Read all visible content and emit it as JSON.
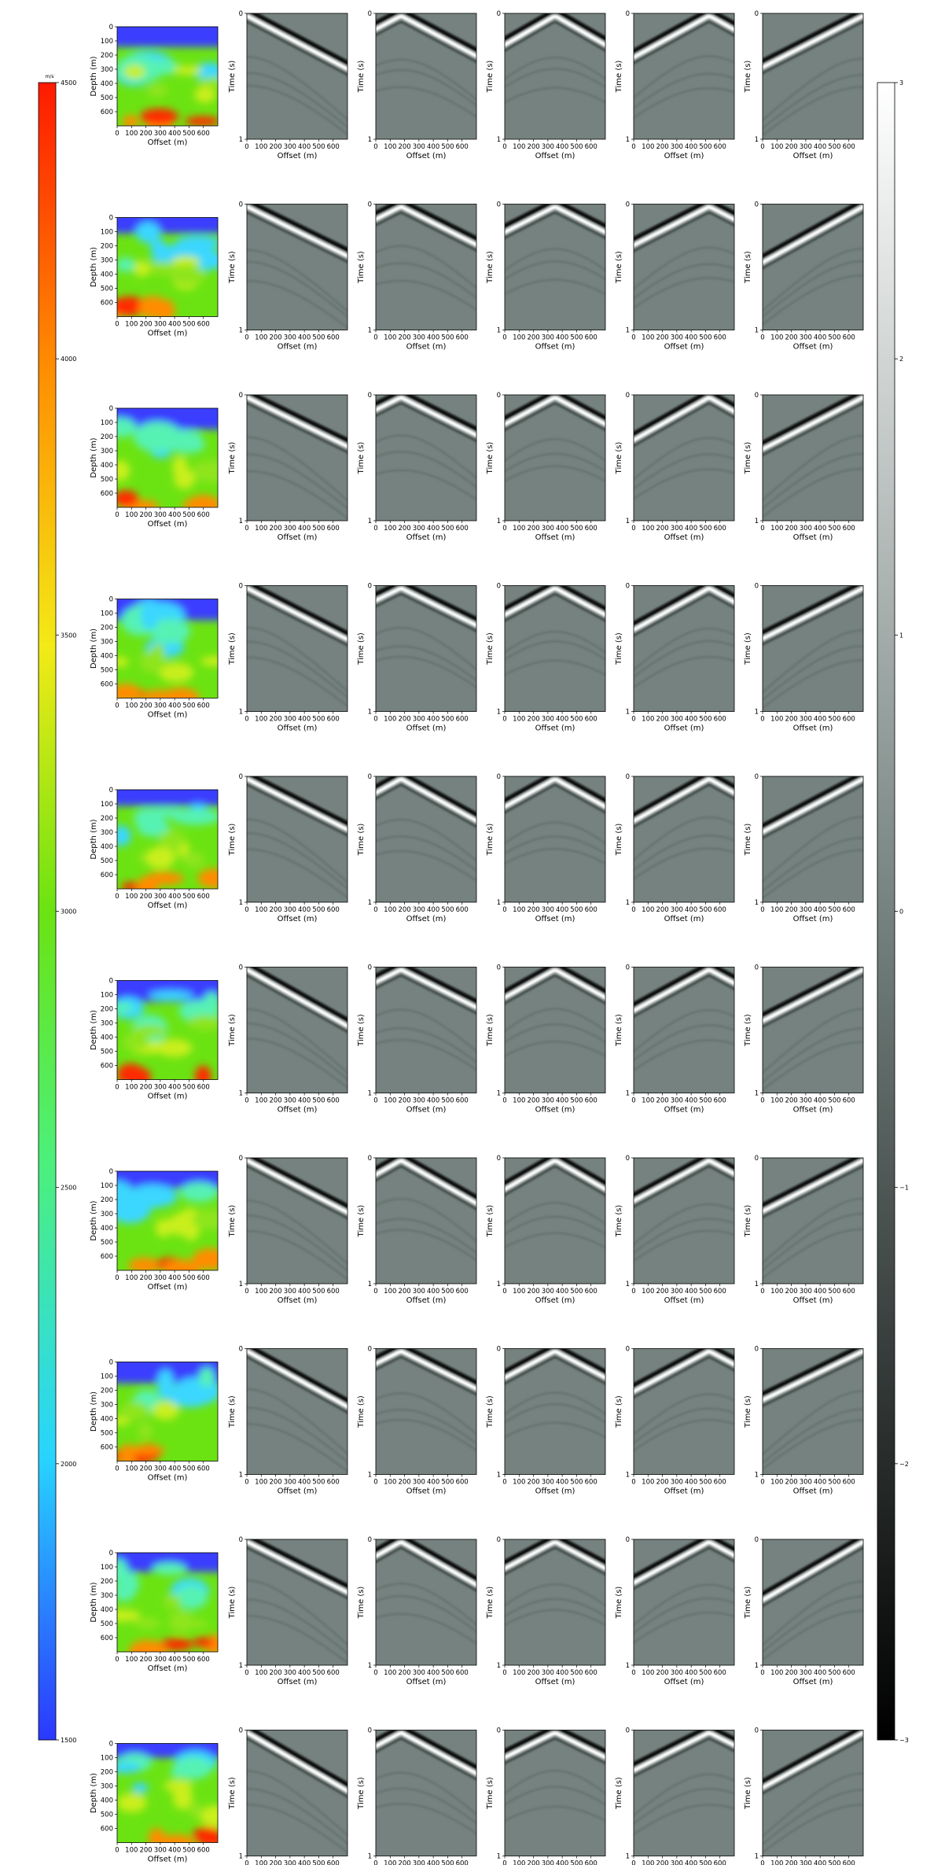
{
  "chart_data": {
    "type": "heatmap",
    "layout": {
      "rows": 10,
      "columns": 6
    },
    "velocity_panel": {
      "xlabel": "Offset (m)",
      "ylabel": "Depth (m)",
      "xticks": [
        "0",
        "100",
        "200",
        "300",
        "400",
        "500",
        "600"
      ],
      "yticks": [
        "0",
        "100",
        "200",
        "300",
        "400",
        "500",
        "600"
      ],
      "xlim": [
        0,
        700
      ],
      "ylim": [
        700,
        0
      ]
    },
    "gather_panel": {
      "xlabel": "Offset (m)",
      "ylabel": "Time (s)",
      "xticks": [
        "0",
        "100",
        "200",
        "300",
        "400",
        "500",
        "600"
      ],
      "yticks": [
        "0",
        "1"
      ],
      "xlim": [
        0,
        700
      ],
      "ylim": [
        1,
        0
      ],
      "source_offsets_m": [
        0,
        175,
        350,
        525,
        700
      ]
    },
    "velocity_colorbar": {
      "unit": "m/s",
      "range": [
        1500,
        4500
      ],
      "ticks": [
        "4500",
        "4000",
        "3500",
        "3000",
        "2500",
        "2000",
        "1500"
      ],
      "colormap": [
        "#2b38ff",
        "#28d4ff",
        "#4cf07a",
        "#6be312",
        "#f3ea16",
        "#ff8c00",
        "#ff1a00"
      ]
    },
    "amplitude_colorbar": {
      "range": [
        -3,
        3
      ],
      "ticks": [
        "3",
        "2",
        "1",
        "0",
        "−1",
        "−2",
        "−3"
      ],
      "colormap": [
        "#000000",
        "#ffffff"
      ]
    }
  }
}
